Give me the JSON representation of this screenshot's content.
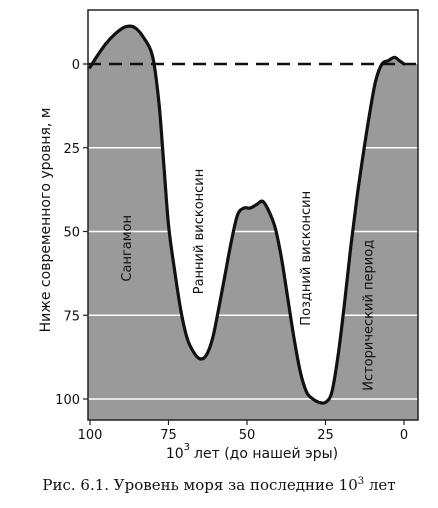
{
  "caption": {
    "prefix": "Рис. 6.1. Уровень моря за последние 10",
    "sup": "3",
    "suffix": " лет"
  },
  "chart_data": {
    "type": "line",
    "ylabel": "Ниже современного уровня, м",
    "xlabel": {
      "base": "10",
      "exponent": "3",
      "rest": "лет (до нашей эры)"
    },
    "x_ticks": [
      100,
      75,
      50,
      25,
      0
    ],
    "y_ticks": [
      0,
      25,
      50,
      75,
      100
    ],
    "xlim": [
      100,
      0
    ],
    "ylim": [
      -10,
      110
    ],
    "reference_line": {
      "y": 0,
      "style": "dashed"
    },
    "series": [
      {
        "x": [
          100,
          98,
          95,
          92,
          89,
          86,
          83,
          80,
          78,
          76.5,
          75,
          73,
          71,
          69,
          67,
          65,
          63,
          61,
          59,
          57,
          55,
          53,
          51,
          49,
          47,
          45,
          43,
          41,
          39,
          37,
          35,
          33,
          31,
          29,
          27,
          25,
          23,
          21,
          19,
          17,
          15,
          13,
          11,
          9,
          7,
          5,
          3,
          1.5,
          0
        ],
        "y": [
          1,
          -2,
          -6,
          -9,
          -11,
          -11,
          -8,
          -2,
          12,
          30,
          48,
          62,
          74,
          82,
          86,
          88,
          87,
          82,
          73,
          63,
          53,
          45,
          43,
          43,
          42,
          41,
          44,
          49,
          58,
          70,
          82,
          92,
          98,
          100,
          101,
          101,
          98,
          87,
          72,
          55,
          40,
          27,
          15,
          5,
          0,
          -1,
          -2,
          -1,
          0
        ]
      }
    ],
    "annotations": [
      {
        "text": "Сангамон",
        "x": 87,
        "y": 55
      },
      {
        "text": "Ранний висконсин",
        "x": 64,
        "y": 50
      },
      {
        "text": "Поздний висконсин",
        "x": 30,
        "y": 58
      },
      {
        "text": "Исторический период",
        "x": 10,
        "y": 75
      }
    ]
  }
}
